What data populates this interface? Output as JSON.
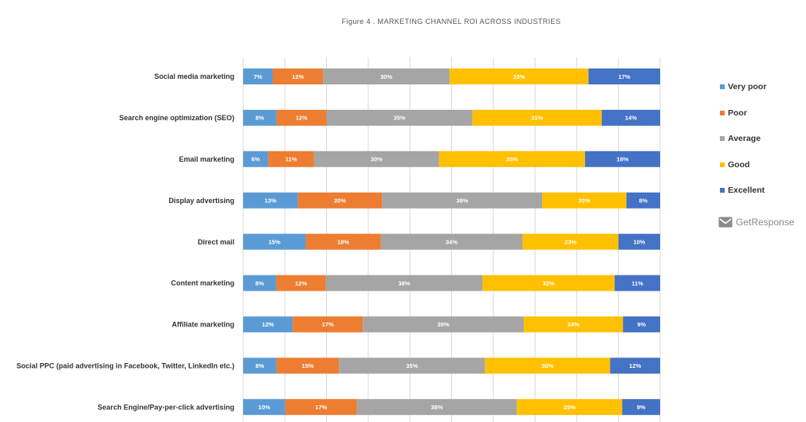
{
  "chart_data": {
    "type": "bar",
    "orientation": "horizontal",
    "stacked": true,
    "title": "Figure 4 . MARKETING CHANNEL ROI ACROSS INDUSTRIES",
    "categories": [
      "Social media marketing",
      "Search engine optimization (SEO)",
      "Email marketing",
      "Display advertising",
      "Direct mail",
      "Content marketing",
      "Affiliate marketing",
      "Social PPC (paid advertising in Facebook, Twitter, LinkedIn etc.)",
      "Search Engine/Pay-per-click advertising"
    ],
    "series": [
      {
        "name": "Very poor",
        "color": "#5b9bd5",
        "values": [
          7,
          8,
          6,
          13,
          15,
          8,
          12,
          8,
          10
        ]
      },
      {
        "name": "Poor",
        "color": "#ed7d31",
        "values": [
          12,
          12,
          11,
          20,
          18,
          12,
          17,
          15,
          17
        ]
      },
      {
        "name": "Average",
        "color": "#a5a5a5",
        "values": [
          30,
          35,
          30,
          38,
          34,
          38,
          39,
          35,
          38
        ]
      },
      {
        "name": "Good",
        "color": "#ffc000",
        "values": [
          33,
          31,
          35,
          20,
          23,
          32,
          24,
          30,
          25
        ]
      },
      {
        "name": "Excellent",
        "color": "#4472c4",
        "values": [
          17,
          14,
          18,
          8,
          10,
          11,
          9,
          12,
          9
        ]
      }
    ],
    "value_suffix": "%",
    "grid": true,
    "legend_position": "right"
  },
  "brand": {
    "name": "GetResponse"
  }
}
